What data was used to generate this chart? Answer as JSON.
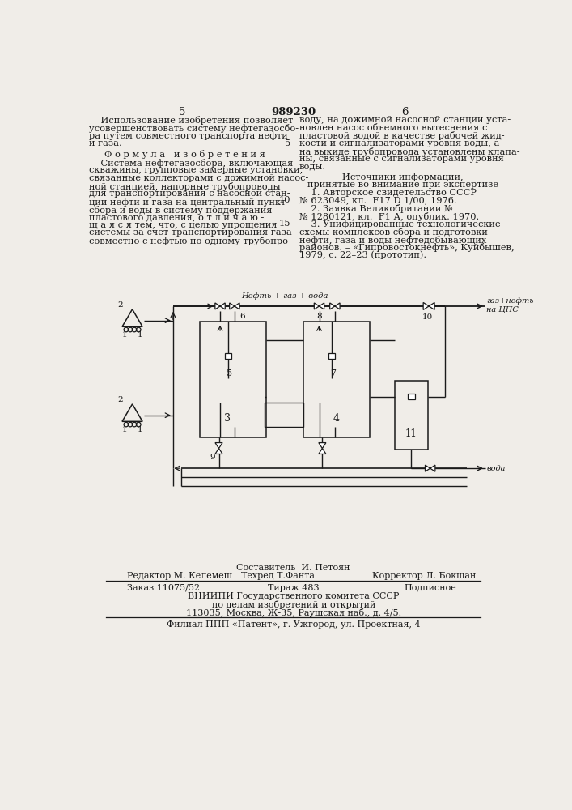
{
  "bg_color": "#f0ede8",
  "text_color": "#1a1a1a",
  "page_number_left": "5",
  "page_number_center": "989230",
  "page_number_right": "6",
  "footer_composer": "Составитель  И. Петоян",
  "footer_editor": "Редактор М. Келемеш",
  "footer_techred": "Техред Т.Фанта",
  "footer_corrector": "Корректор Л. Бокшан",
  "footer_order": "Заказ 11075/52",
  "footer_tirazh": "Тираж 483",
  "footer_podpisnoe": "Подписное",
  "footer_vniipи": "ВНИИПИ Государственного комитета СССР",
  "footer_podelam": "по делам изобретений и открытий",
  "footer_address": "113035, Москва, Ж-35, Раушская наб., д. 4/5.",
  "footer_filial": "Филиал ППП «Патент», г. Ужгород, ул. Проектная, 4"
}
